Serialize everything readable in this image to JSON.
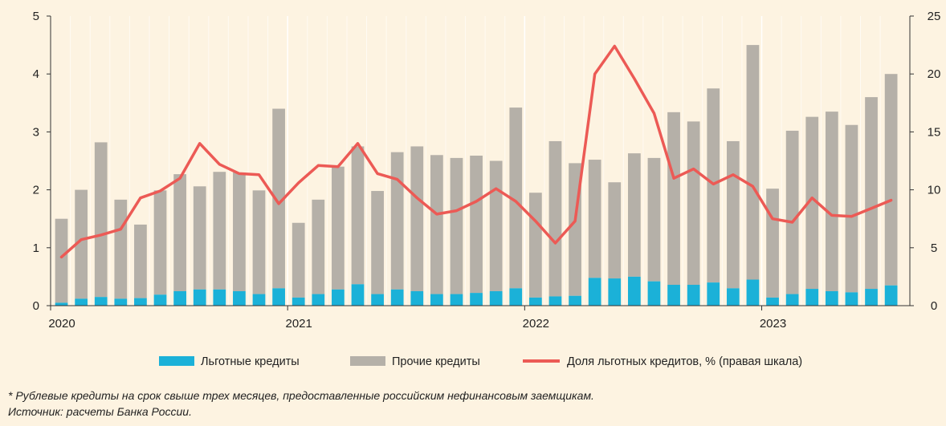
{
  "chart_data": {
    "type": "bar",
    "stacked": true,
    "categories": [
      "Jan 2020",
      "Feb 2020",
      "Mar 2020",
      "Apr 2020",
      "May 2020",
      "Jun 2020",
      "Jul 2020",
      "Aug 2020",
      "Sep 2020",
      "Oct 2020",
      "Nov 2020",
      "Dec 2020",
      "Jan 2021",
      "Feb 2021",
      "Mar 2021",
      "Apr 2021",
      "May 2021",
      "Jun 2021",
      "Jul 2021",
      "Aug 2021",
      "Sep 2021",
      "Oct 2021",
      "Nov 2021",
      "Dec 2021",
      "Jan 2022",
      "Feb 2022",
      "Mar 2022",
      "Apr 2022",
      "May 2022",
      "Jun 2022",
      "Jul 2022",
      "Aug 2022",
      "Sep 2022",
      "Oct 2022",
      "Nov 2022",
      "Dec 2022",
      "Jan 2023",
      "Feb 2023",
      "Mar 2023",
      "Apr 2023",
      "May 2023",
      "Jun 2023",
      "Jul 2023"
    ],
    "x_tick_labels": [
      "2020",
      "2021",
      "2022",
      "2023"
    ],
    "x_tick_month_index": [
      0,
      12,
      24,
      36
    ],
    "left_axis": {
      "min": 0,
      "max": 5,
      "ticks": [
        "0",
        "1",
        "2",
        "3",
        "4",
        "5"
      ]
    },
    "right_axis": {
      "min": 0,
      "max": 25,
      "ticks": [
        "0",
        "5",
        "10",
        "15",
        "20",
        "25"
      ]
    },
    "grid": "vertical-yearly",
    "series": [
      {
        "name": "Льготные кредиты",
        "kind": "bar",
        "axis": "left",
        "color": "#1bb1d8",
        "values": [
          0.05,
          0.12,
          0.15,
          0.12,
          0.13,
          0.19,
          0.25,
          0.28,
          0.28,
          0.25,
          0.2,
          0.3,
          0.14,
          0.2,
          0.28,
          0.37,
          0.2,
          0.28,
          0.25,
          0.2,
          0.2,
          0.22,
          0.25,
          0.3,
          0.14,
          0.16,
          0.17,
          0.48,
          0.47,
          0.5,
          0.42,
          0.36,
          0.36,
          0.4,
          0.3,
          0.45,
          0.14,
          0.2,
          0.29,
          0.25,
          0.23,
          0.29,
          0.35
        ]
      },
      {
        "name": "Прочие кредиты",
        "kind": "bar",
        "axis": "left",
        "color": "#b5b0a8",
        "values": [
          1.45,
          1.88,
          2.67,
          1.71,
          1.27,
          1.8,
          2.02,
          1.78,
          2.03,
          2.05,
          1.79,
          3.1,
          1.29,
          1.63,
          2.12,
          2.38,
          1.78,
          2.37,
          2.5,
          2.4,
          2.35,
          2.37,
          2.25,
          3.12,
          1.81,
          2.68,
          2.29,
          2.04,
          1.66,
          2.13,
          2.13,
          2.98,
          2.82,
          3.35,
          2.54,
          4.05,
          1.88,
          2.82,
          2.97,
          3.1,
          2.89,
          3.31,
          3.65
        ]
      },
      {
        "name": "Доля льготных кредитов, % (правая шкала)",
        "kind": "line",
        "axis": "right",
        "color": "#ec5a55",
        "values": [
          4.2,
          5.7,
          6.1,
          6.6,
          9.3,
          9.9,
          11.0,
          14.0,
          12.2,
          11.4,
          11.3,
          8.8,
          10.6,
          12.1,
          12.0,
          14.0,
          11.4,
          10.9,
          9.3,
          7.9,
          8.2,
          9.0,
          10.1,
          9.0,
          7.3,
          5.4,
          7.3,
          20.0,
          22.4,
          19.6,
          16.6,
          11.0,
          11.8,
          10.5,
          11.3,
          10.3,
          7.5,
          7.2,
          9.3,
          7.8,
          7.7,
          8.4,
          9.1
        ]
      }
    ],
    "legend_position": "bottom-center"
  },
  "footnotes": {
    "note": "* Рублевые кредиты на срок свыше трех месяцев, предоставленные российским нефинансовым заемщикам.",
    "source": "Источник: расчеты Банка России."
  }
}
